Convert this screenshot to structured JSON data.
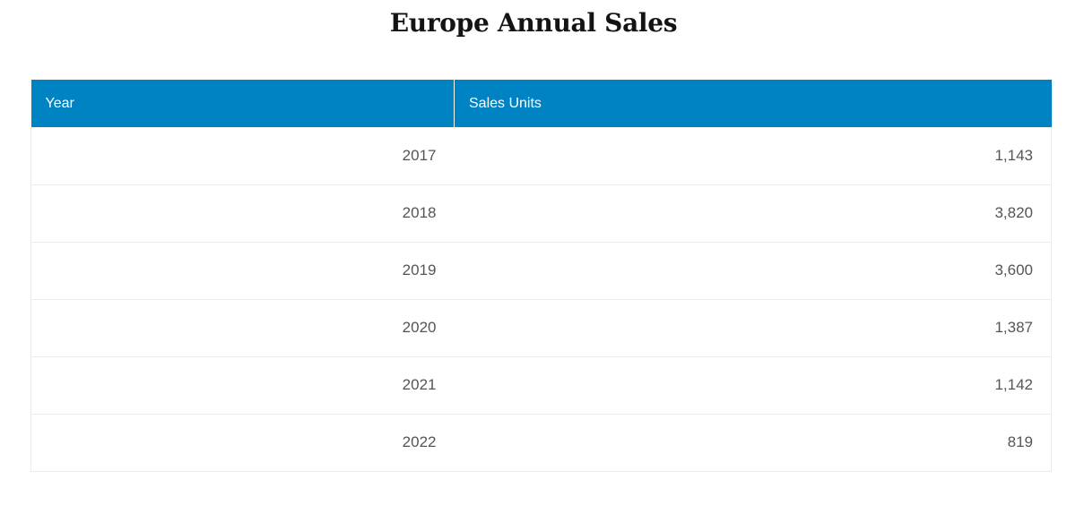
{
  "chart_data": {
    "type": "table",
    "title": "Europe Annual Sales",
    "columns": [
      "Year",
      "Sales Units"
    ],
    "rows": [
      {
        "year": "2017",
        "units": "1,143"
      },
      {
        "year": "2018",
        "units": "3,820"
      },
      {
        "year": "2019",
        "units": "3,600"
      },
      {
        "year": "2020",
        "units": "1,387"
      },
      {
        "year": "2021",
        "units": "1,142"
      },
      {
        "year": "2022",
        "units": "819"
      }
    ],
    "header_color": "#0083c3"
  }
}
